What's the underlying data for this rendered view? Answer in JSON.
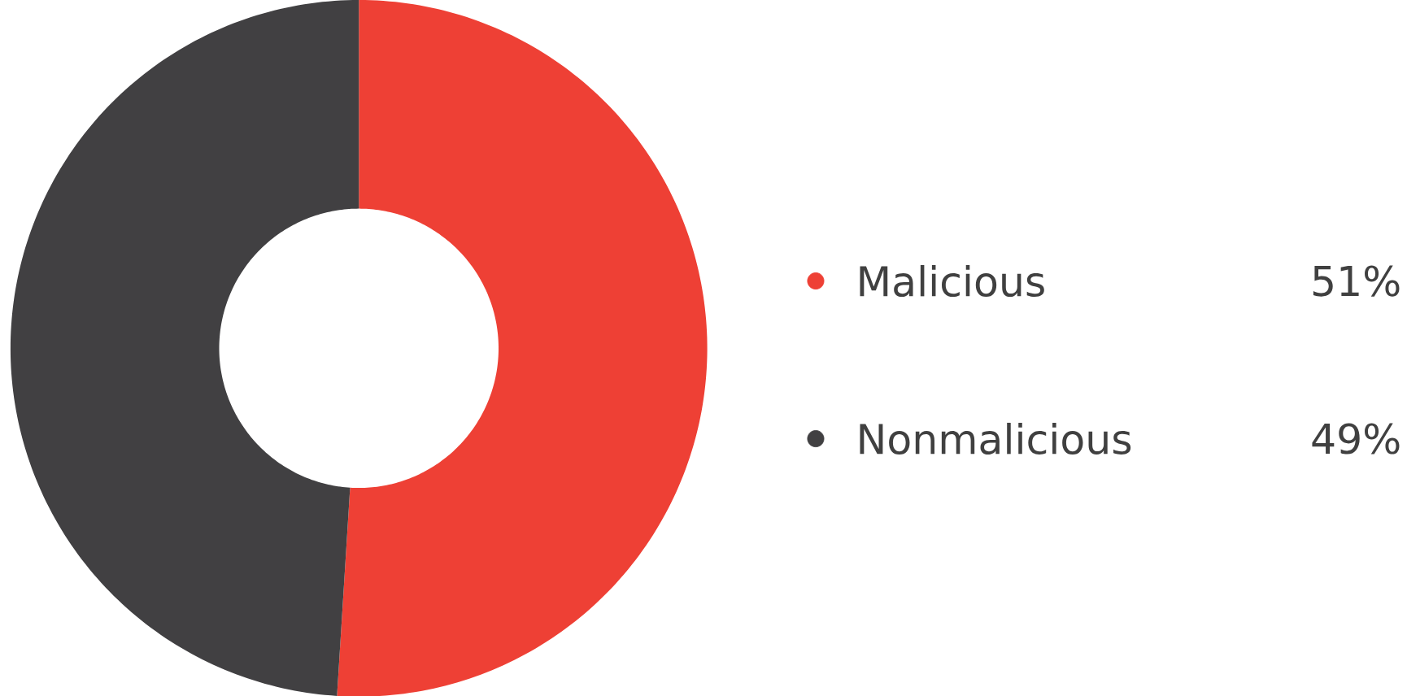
{
  "chart_data": {
    "type": "donut",
    "categories": [
      "Malicious",
      "Nonmalicious"
    ],
    "values": [
      51,
      49
    ],
    "colors": [
      "#ee4035",
      "#414042"
    ],
    "value_labels": [
      "51%",
      "49%"
    ],
    "legend": "right"
  }
}
